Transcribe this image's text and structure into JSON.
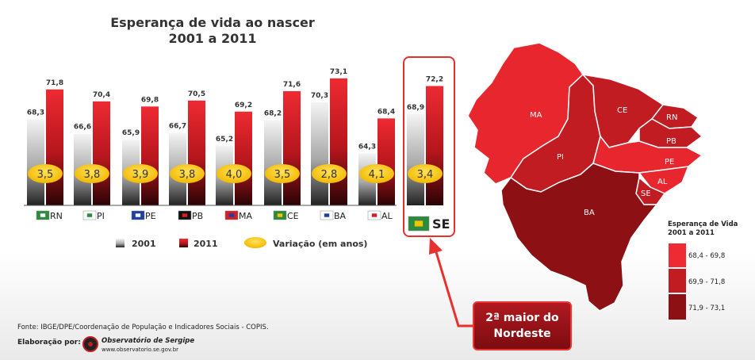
{
  "chart_data": {
    "type": "bar",
    "title_line1": "Esperança de vida ao nascer",
    "title_line2": "2001 a 2011",
    "categories": [
      "RN",
      "PI",
      "PE",
      "PB",
      "MA",
      "CE",
      "BA",
      "AL",
      "SE"
    ],
    "series": [
      {
        "name": "2001",
        "values": [
          68.3,
          66.6,
          65.9,
          66.7,
          65.2,
          68.2,
          70.3,
          64.3,
          68.9
        ],
        "labels": [
          "68,3",
          "66,6",
          "65,9",
          "66,7",
          "65,2",
          "68,2",
          "70,3",
          "64,3",
          "68,9"
        ]
      },
      {
        "name": "2011",
        "values": [
          71.8,
          70.4,
          69.8,
          70.5,
          69.2,
          71.6,
          73.1,
          68.4,
          72.2
        ],
        "labels": [
          "71,8",
          "70,4",
          "69,8",
          "70,5",
          "69,2",
          "71,6",
          "73,1",
          "68,4",
          "72,2"
        ]
      }
    ],
    "variation": {
      "name": "Variação (em anos)",
      "labels": [
        "3,5",
        "3,8",
        "3,9",
        "3,8",
        "4,0",
        "3,5",
        "2,8",
        "4,1",
        "3,4"
      ]
    },
    "highlight": "SE",
    "colors": {
      "2001": "#9a9a9a",
      "2011": "#d41f26",
      "variation": "#f5c400"
    }
  },
  "callout": {
    "line1": "2ª maior do",
    "line2": "Nordeste"
  },
  "map": {
    "labels": [
      "MA",
      "CE",
      "RN",
      "PB",
      "PE",
      "PI",
      "AL",
      "SE",
      "BA"
    ],
    "legend_title_line1": "Esperança de Vida",
    "legend_title_line2": "2001 a 2011",
    "legend": [
      {
        "label": "68,4 - 69,8",
        "color": "#ee2a32"
      },
      {
        "label": "69,9 - 71,8",
        "color": "#c11c22"
      },
      {
        "label": "71,9 - 73,1",
        "color": "#8d1014"
      }
    ]
  },
  "footer": {
    "source": "Fonte: IBGE/DPE/Coordenação de População e Indicadores Sociais - COPIS.",
    "elaboration": "Elaboração por:",
    "org": "Observatório de Sergipe",
    "site": "www.observatorio.se.gov.br"
  }
}
